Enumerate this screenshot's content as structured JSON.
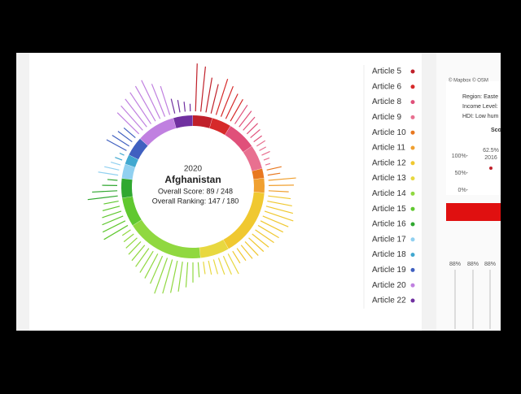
{
  "chart_data": {
    "type": "radial",
    "center": {
      "year": "2020",
      "country": "Afghanistan",
      "score": "Overall Score: 89 / 248",
      "ranking": "Overall Ranking: 147 / 180"
    },
    "articles": [
      {
        "name": "Article 5",
        "color": "#c0202a",
        "values": [
          95,
          90,
          70,
          60
        ]
      },
      {
        "name": "Article 6",
        "color": "#d62a2a",
        "values": [
          75,
          65,
          55,
          50
        ]
      },
      {
        "name": "Article 8",
        "color": "#e0507a",
        "values": [
          45,
          40,
          35,
          30,
          25,
          20
        ]
      },
      {
        "name": "Article 9",
        "color": "#e87090",
        "values": [
          20,
          15,
          18,
          12,
          10
        ]
      },
      {
        "name": "Article 10",
        "color": "#e87820",
        "values": [
          30,
          25
        ]
      },
      {
        "name": "Article 11",
        "color": "#f0a030",
        "values": [
          55,
          50,
          40
        ]
      },
      {
        "name": "Article 12",
        "color": "#f0c830",
        "values": [
          45,
          50,
          55,
          60,
          55,
          50,
          48,
          45,
          42,
          40,
          38,
          35,
          30,
          28
        ]
      },
      {
        "name": "Article 13",
        "color": "#e8d840",
        "values": [
          45,
          40,
          35,
          30,
          28,
          25
        ]
      },
      {
        "name": "Article 14",
        "color": "#90d840",
        "values": [
          30,
          40,
          50,
          60,
          65,
          70,
          75,
          60,
          55,
          50,
          45,
          40,
          35,
          30,
          25,
          20
        ]
      },
      {
        "name": "Article 15",
        "color": "#60c830",
        "values": [
          55,
          50,
          45,
          40,
          35,
          30
        ]
      },
      {
        "name": "Article 16",
        "color": "#30a830",
        "values": [
          60,
          50,
          30,
          20
        ]
      },
      {
        "name": "Article 17",
        "color": "#90d0f0",
        "values": [
          40,
          30,
          20
        ]
      },
      {
        "name": "Article 18",
        "color": "#40a8d0",
        "values": [
          15,
          10
        ]
      },
      {
        "name": "Article 19",
        "color": "#4060c0",
        "values": [
          45,
          40,
          35,
          30
        ]
      },
      {
        "name": "Article 20",
        "color": "#c080e0",
        "values": [
          60,
          65,
          70,
          75,
          80,
          85,
          70,
          60
        ]
      },
      {
        "name": "Article 22",
        "color": "#7030a0",
        "values": [
          30,
          25,
          20,
          15
        ]
      }
    ]
  },
  "side_panel": {
    "map_credit": "© Mapbox © OSM",
    "region": "Region: Easte",
    "income": "Income Level:",
    "hdi": "HDI: Low hum",
    "score_title": "Sco",
    "y100": "100%-",
    "y50": "50%-",
    "y0": "0%-",
    "point_label": "62.5%",
    "point_year": "2016",
    "pct": [
      "88%",
      "88%",
      "88%"
    ]
  }
}
